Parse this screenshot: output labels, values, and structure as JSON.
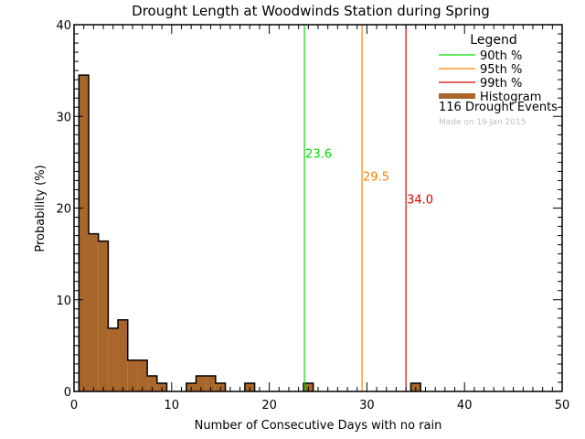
{
  "chart_data": {
    "type": "bar",
    "title": "Drought Length at Woodwinds Station during Spring",
    "xlabel": "Number of Consecutive Days with no rain",
    "ylabel": "Probability (%)",
    "xlim": [
      0,
      50
    ],
    "ylim": [
      0,
      40
    ],
    "xticks": [
      0,
      10,
      20,
      30,
      40,
      50
    ],
    "yticks": [
      0,
      10,
      20,
      30,
      40
    ],
    "grid": false,
    "legend_position": "upper right",
    "bins": [
      {
        "x0": 0.5,
        "x1": 1.5,
        "value": 34.5
      },
      {
        "x0": 1.5,
        "x1": 2.5,
        "value": 17.2
      },
      {
        "x0": 2.5,
        "x1": 3.5,
        "value": 16.4
      },
      {
        "x0": 3.5,
        "x1": 4.5,
        "value": 6.9
      },
      {
        "x0": 4.5,
        "x1": 5.5,
        "value": 7.8
      },
      {
        "x0": 5.5,
        "x1": 6.5,
        "value": 3.4
      },
      {
        "x0": 6.5,
        "x1": 7.5,
        "value": 3.4
      },
      {
        "x0": 7.5,
        "x1": 8.5,
        "value": 1.7
      },
      {
        "x0": 8.5,
        "x1": 9.5,
        "value": 0.9
      },
      {
        "x0": 11.5,
        "x1": 12.5,
        "value": 0.9
      },
      {
        "x0": 12.5,
        "x1": 13.5,
        "value": 1.7
      },
      {
        "x0": 13.5,
        "x1": 14.5,
        "value": 1.7
      },
      {
        "x0": 14.5,
        "x1": 15.5,
        "value": 0.9
      },
      {
        "x0": 17.5,
        "x1": 18.5,
        "value": 0.9
      },
      {
        "x0": 23.5,
        "x1": 24.5,
        "value": 0.9
      },
      {
        "x0": 34.5,
        "x1": 35.5,
        "value": 0.9
      }
    ],
    "percentiles": [
      {
        "name": "90th %",
        "value": 23.6,
        "label": "23.6",
        "color": "#00dd00",
        "label_y": 26
      },
      {
        "name": "95th %",
        "value": 29.5,
        "label": "29.5",
        "color": "#ff8000",
        "label_y": 23.5
      },
      {
        "name": "99th %",
        "value": 34.0,
        "label": "34.0",
        "color": "#dd0000",
        "label_y": 21
      }
    ],
    "legend": {
      "title": "Legend",
      "entries": [
        {
          "label": "90th %",
          "color": "#00dd00",
          "kind": "line"
        },
        {
          "label": "95th %",
          "color": "#ff8000",
          "kind": "line"
        },
        {
          "label": "99th %",
          "color": "#dd0000",
          "kind": "line"
        },
        {
          "label": "Histogram",
          "color": "#a8662a",
          "kind": "bar"
        }
      ],
      "events_text": "116 Drought Events",
      "made_on_text": "Made on 19 Jan 2015"
    },
    "histogram_color": "#a8662a"
  }
}
